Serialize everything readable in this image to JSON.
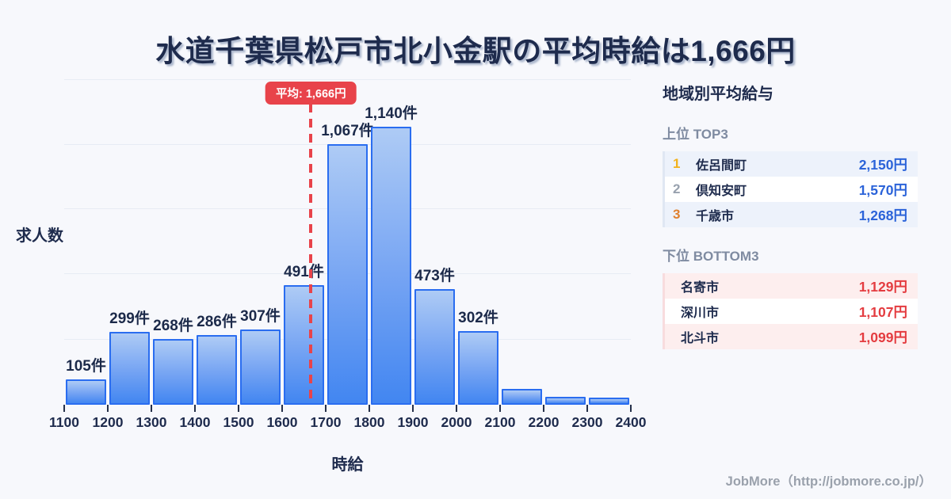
{
  "title": "水道千葉県松戸市北小金駅の平均時給は1,666円",
  "chart_data": {
    "type": "bar",
    "title": "水道千葉県松戸市北小金駅の平均時給は1,666円",
    "xlabel": "時給",
    "ylabel": "求人数",
    "categories": [
      "1100-1200",
      "1200-1300",
      "1300-1400",
      "1400-1500",
      "1500-1600",
      "1600-1700",
      "1700-1800",
      "1800-1900",
      "1900-2000",
      "2000-2100",
      "2100-2200",
      "2200-2300",
      "2300-2400"
    ],
    "values": [
      105,
      299,
      268,
      286,
      307,
      491,
      1067,
      1140,
      473,
      302,
      65,
      32,
      28
    ],
    "bar_labels": [
      "105件",
      "299件",
      "268件",
      "286件",
      "307件",
      "491件",
      "1,067件",
      "1,140件",
      "473件",
      "302件",
      "",
      "",
      ""
    ],
    "xticks": [
      "1100",
      "1200",
      "1300",
      "1400",
      "1500",
      "1600",
      "1700",
      "1800",
      "1900",
      "2000",
      "2100",
      "2200",
      "2300",
      "2400"
    ],
    "x_range": [
      1100,
      2400
    ],
    "ylim": [
      0,
      1345
    ],
    "grid": "horizontal",
    "average": {
      "value": 1666,
      "label": "平均: 1,666円"
    },
    "colors": {
      "bar_fill_top": "#aecbf5",
      "bar_fill_bottom": "#4286f1",
      "bar_border": "#2a6df0",
      "average_line": "#e8434a",
      "gridline": "#e7ecf4"
    }
  },
  "sidebar": {
    "title": "地域別平均給与",
    "top3": {
      "heading": "上位 TOP3",
      "rows": [
        {
          "rank": "1",
          "name": "佐呂間町",
          "value": "2,150円"
        },
        {
          "rank": "2",
          "name": "倶知安町",
          "value": "1,570円"
        },
        {
          "rank": "3",
          "name": "千歳市",
          "value": "1,268円"
        }
      ],
      "rank_colors": [
        "#f2b21c",
        "#98a1ae",
        "#e0802f"
      ],
      "value_color": "#2b63d9",
      "row_alt_bg": "#edf2fb"
    },
    "bottom3": {
      "heading": "下位 BOTTOM3",
      "rows": [
        {
          "name": "名寄市",
          "value": "1,129円"
        },
        {
          "name": "深川市",
          "value": "1,107円"
        },
        {
          "name": "北斗市",
          "value": "1,099円"
        }
      ],
      "value_color": "#e43c40",
      "row_alt_bg": "#fdeeee"
    }
  },
  "footer": {
    "credit": "JobMore（http://jobmore.co.jp/）"
  }
}
